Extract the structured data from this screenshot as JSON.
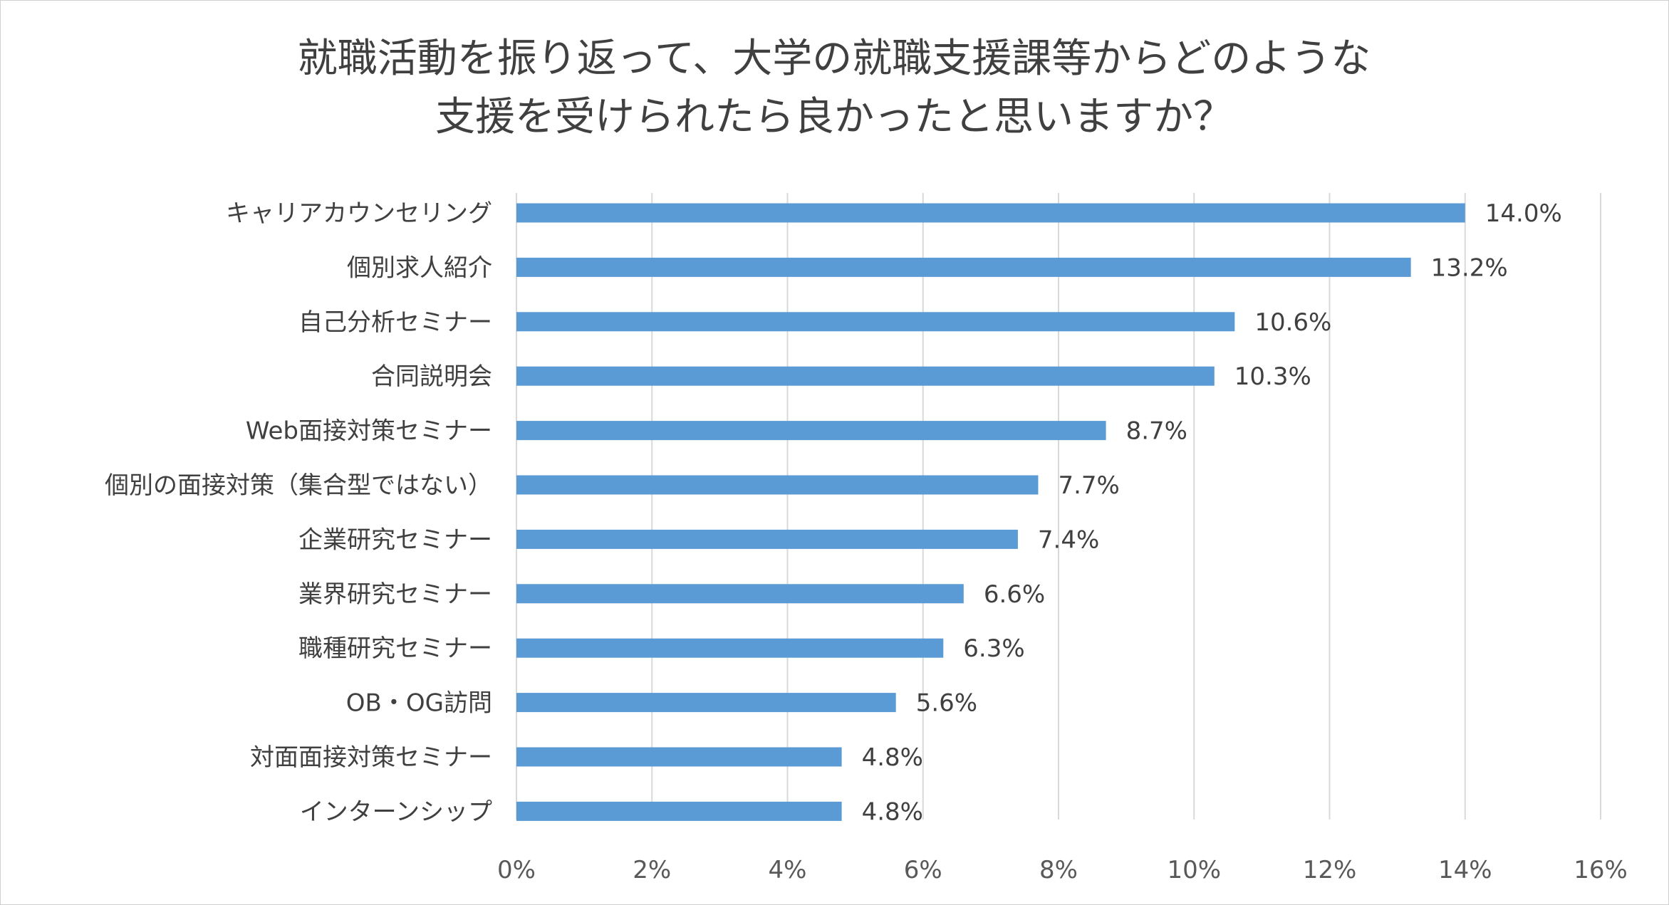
{
  "chart_data": {
    "type": "bar",
    "orientation": "horizontal",
    "title_lines": [
      "就職活動を振り返って、大学の就職支援課等からどのような",
      "支援を受けられたら良かったと思いますか？"
    ],
    "categories": [
      "キャリアカウンセリング",
      "個別求人紹介",
      "自己分析セミナー",
      "合同説明会",
      "Web面接対策セミナー",
      "個別の面接対策（集合型ではない）",
      "企業研究セミナー",
      "業界研究セミナー",
      "職種研究セミナー",
      "OB・OG訪問",
      "対面面接対策セミナー",
      "インターンシップ"
    ],
    "values": [
      14.0,
      13.2,
      10.6,
      10.3,
      8.7,
      7.7,
      7.4,
      6.6,
      6.3,
      5.6,
      4.8,
      4.8
    ],
    "data_labels": [
      "14.0%",
      "13.2%",
      "10.6%",
      "10.3%",
      "8.7%",
      "7.7%",
      "7.4%",
      "6.6%",
      "6.3%",
      "5.6%",
      "4.8%",
      "4.8%"
    ],
    "x_ticks": [
      "0%",
      "2%",
      "4%",
      "6%",
      "8%",
      "10%",
      "12%",
      "14%",
      "16%"
    ],
    "xlim": [
      0,
      16
    ],
    "grid": true,
    "legend": "none",
    "bar_color": "#5b9bd5"
  }
}
